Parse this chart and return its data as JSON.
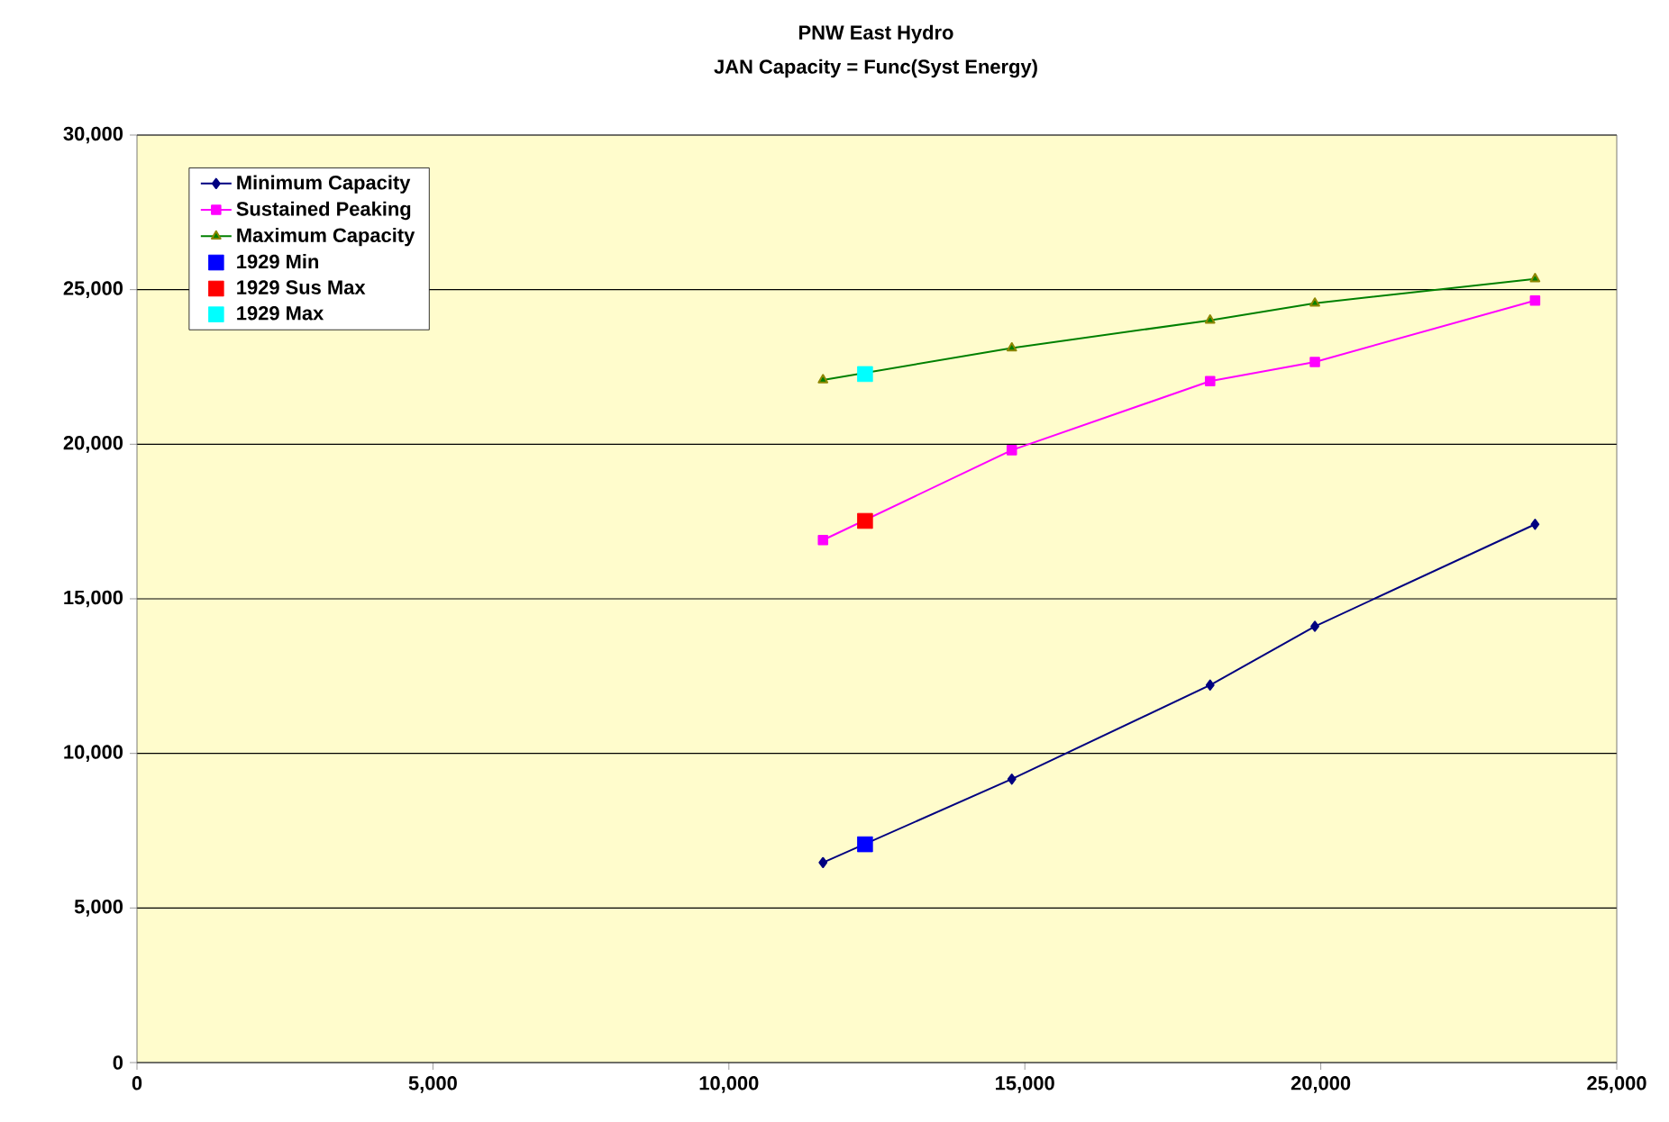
{
  "chart_data": {
    "type": "line",
    "title": "PNW East Hydro",
    "subtitle": "JAN Capacity = Func(Syst Energy)",
    "series": [
      {
        "name": "Minimum Capacity",
        "color": "#000080",
        "marker": "diamond",
        "x": [
          11590,
          14780,
          18130,
          19900,
          23620
        ],
        "values": [
          6470,
          9170,
          12210,
          14110,
          17410
        ]
      },
      {
        "name": "Sustained Peaking",
        "color": "#ff00ff",
        "marker": "square",
        "x": [
          11590,
          14780,
          18130,
          19900,
          23620
        ],
        "values": [
          16900,
          19810,
          22040,
          22660,
          24650
        ]
      },
      {
        "name": "Maximum Capacity",
        "color": "#008000",
        "marker": "triangle",
        "x": [
          11590,
          14780,
          18130,
          19900,
          23620
        ],
        "values": [
          22080,
          23110,
          24010,
          24560,
          25350
        ]
      },
      {
        "name": "1929 Min",
        "type": "scatter",
        "color": "#0000ff",
        "marker": "square",
        "x": [
          12300
        ],
        "values": [
          7060
        ]
      },
      {
        "name": "1929 Sus Max",
        "type": "scatter",
        "color": "#ff0000",
        "marker": "square",
        "x": [
          12300
        ],
        "values": [
          17520
        ]
      },
      {
        "name": "1929 Max",
        "type": "scatter",
        "color": "#00ffff",
        "marker": "square",
        "x": [
          12300
        ],
        "values": [
          22270
        ]
      }
    ],
    "xlim": [
      0,
      25000
    ],
    "xticks": [
      0,
      {
        "value": 5000,
        "label": "5,000"
      },
      {
        "value": 10000,
        "label": "10,000"
      },
      {
        "value": 15000,
        "label": "15,000"
      },
      {
        "value": 20000,
        "label": "20,000"
      },
      {
        "value": 25000,
        "label": "25,000"
      }
    ],
    "ylim": [
      0,
      30000
    ],
    "yticks": [
      0,
      {
        "value": 5000,
        "label": "5,000"
      },
      {
        "value": 10000,
        "label": "10,000"
      },
      {
        "value": 15000,
        "label": "15,000"
      },
      {
        "value": 20000,
        "label": "20,000"
      },
      {
        "value": 25000,
        "label": "25,000"
      },
      {
        "value": 30000,
        "label": "30,000"
      }
    ],
    "grid": "y",
    "legend": "top left",
    "line_style": "solid"
  }
}
